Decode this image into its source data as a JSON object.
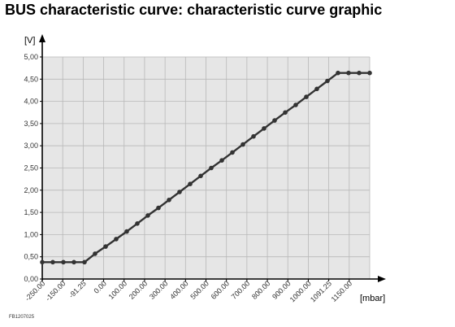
{
  "title": "BUS characteristic curve: characteristic curve graphic",
  "figure_code": "FB1207025",
  "chart_data": {
    "type": "line",
    "title": "BUS characteristic curve: characteristic curve graphic",
    "xlabel": "[mbar]",
    "ylabel": "[V]",
    "x_tick_labels": [
      "-250.00",
      "-150.00",
      "-91.25",
      "0.00",
      "100.00",
      "200.00",
      "300.00",
      "400.00",
      "500.00",
      "600.00",
      "700.00",
      "800.00",
      "900.00",
      "1000.00",
      "1091.25",
      "1150.00"
    ],
    "y_tick_labels": [
      "0,00",
      "0,50",
      "1,00",
      "1,50",
      "2,00",
      "2,50",
      "3,00",
      "3,50",
      "4,00",
      "4,50",
      "5,00"
    ],
    "ylim": [
      0,
      5
    ],
    "grid": true,
    "x_positions": [
      -6,
      -5,
      -4,
      -3,
      -2,
      -1,
      0,
      1,
      2,
      3,
      4,
      5,
      6,
      7,
      8,
      9,
      10,
      11,
      12,
      13,
      14,
      15,
      16,
      17,
      18,
      19,
      20,
      21,
      22,
      23,
      24,
      25
    ],
    "values": [
      0.38,
      0.38,
      0.38,
      0.38,
      0.38,
      0.57,
      0.73,
      0.9,
      1.07,
      1.25,
      1.43,
      1.6,
      1.78,
      1.96,
      2.14,
      2.32,
      2.5,
      2.67,
      2.85,
      3.03,
      3.21,
      3.39,
      3.57,
      3.75,
      3.92,
      4.1,
      4.28,
      4.46,
      4.64,
      4.64,
      4.64,
      4.64
    ],
    "line_color": "#333333",
    "plot_background": "#e6e6e6"
  }
}
